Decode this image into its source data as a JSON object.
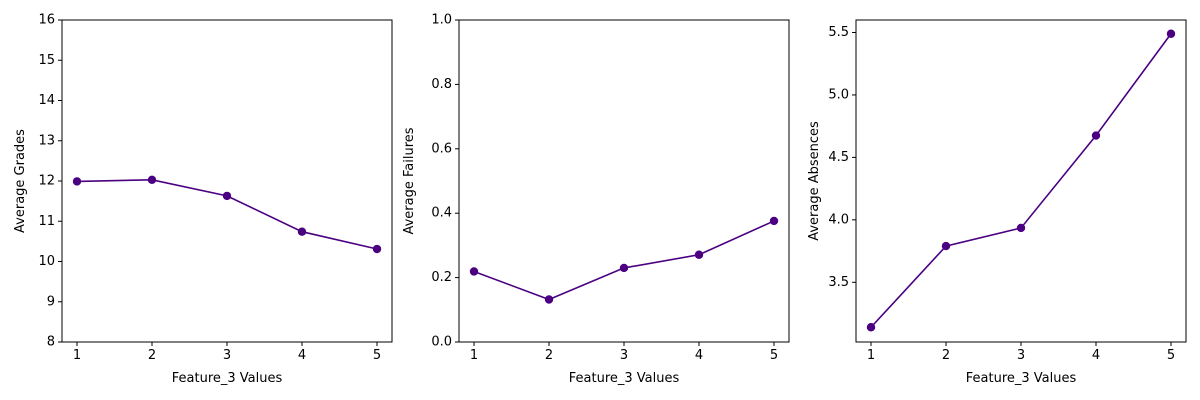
{
  "colors": {
    "line": "#4b0082",
    "marker": "#4b0082"
  },
  "chart_data": [
    {
      "type": "line",
      "title": "",
      "xlabel": "Feature_3 Values",
      "ylabel": "Average Grades",
      "x": [
        1,
        2,
        3,
        4,
        5
      ],
      "series": [
        {
          "values": [
            11.99,
            12.03,
            11.63,
            10.74,
            10.31
          ]
        }
      ],
      "xlim": [
        0.8,
        5.2
      ],
      "ylim": [
        8,
        16
      ],
      "xticks": [
        1,
        2,
        3,
        4,
        5
      ],
      "yticks": [
        8,
        9,
        10,
        11,
        12,
        13,
        14,
        15,
        16
      ],
      "xtick_labels": [
        "1",
        "2",
        "3",
        "4",
        "5"
      ],
      "ytick_labels": [
        "8",
        "9",
        "10",
        "11",
        "12",
        "13",
        "14",
        "15",
        "16"
      ],
      "grid": false,
      "marker": "circle"
    },
    {
      "type": "line",
      "title": "",
      "xlabel": "Feature_3 Values",
      "ylabel": "Average Failures",
      "x": [
        1,
        2,
        3,
        4,
        5
      ],
      "series": [
        {
          "values": [
            0.219,
            0.132,
            0.23,
            0.271,
            0.376
          ]
        }
      ],
      "xlim": [
        0.8,
        5.2
      ],
      "ylim": [
        0,
        1
      ],
      "xticks": [
        1,
        2,
        3,
        4,
        5
      ],
      "yticks": [
        0,
        0.2,
        0.4,
        0.6,
        0.8,
        1.0
      ],
      "xtick_labels": [
        "1",
        "2",
        "3",
        "4",
        "5"
      ],
      "ytick_labels": [
        "0.0",
        "0.2",
        "0.4",
        "0.6",
        "0.8",
        "1.0"
      ],
      "grid": false,
      "marker": "circle"
    },
    {
      "type": "line",
      "title": "",
      "xlabel": "Feature_3 Values",
      "ylabel": "Average Absences",
      "x": [
        1,
        2,
        3,
        4,
        5
      ],
      "series": [
        {
          "values": [
            3.14,
            3.79,
            3.935,
            4.675,
            5.49
          ]
        }
      ],
      "xlim": [
        0.8,
        5.2
      ],
      "ylim": [
        3.022,
        5.6
      ],
      "xticks": [
        1,
        2,
        3,
        4,
        5
      ],
      "yticks": [
        3.5,
        4.0,
        4.5,
        5.0,
        5.5
      ],
      "xtick_labels": [
        "1",
        "2",
        "3",
        "4",
        "5"
      ],
      "ytick_labels": [
        "3.5",
        "4.0",
        "4.5",
        "5.0",
        "5.5"
      ],
      "grid": false,
      "marker": "circle"
    }
  ]
}
